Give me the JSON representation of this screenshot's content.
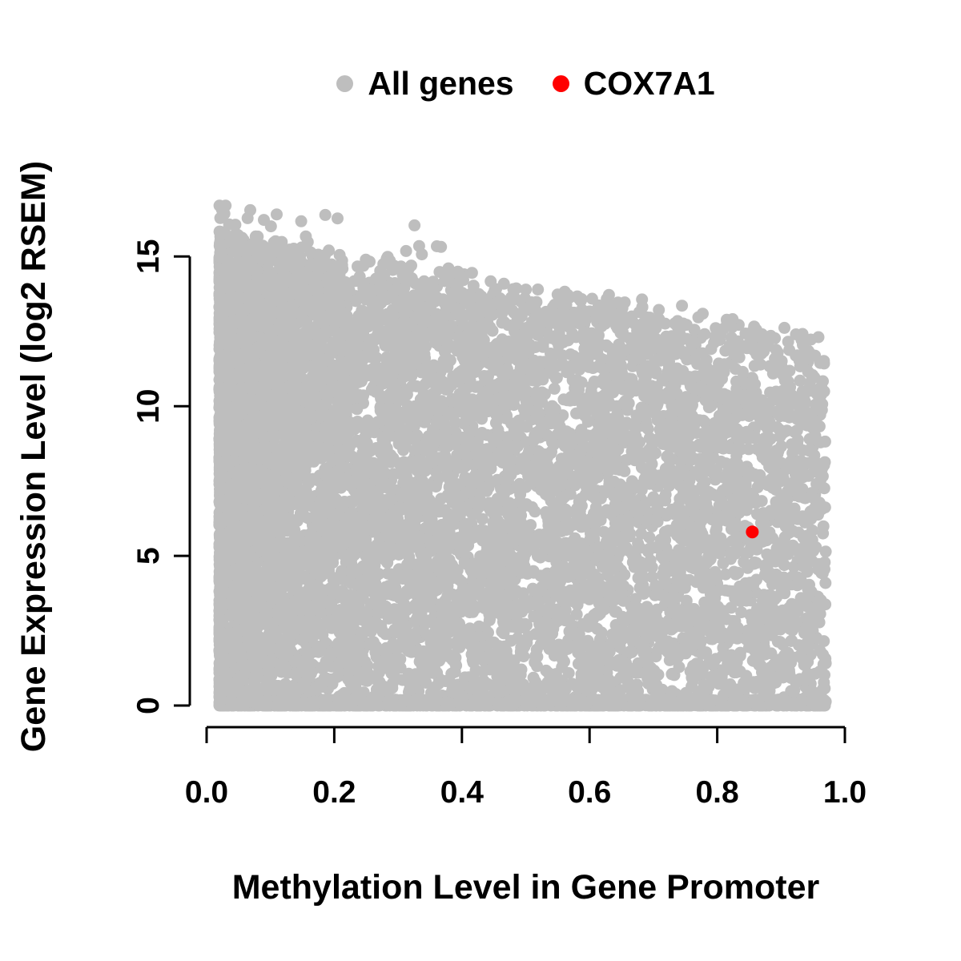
{
  "colors": {
    "background": "#ffffff",
    "axis": "#000000",
    "text": "#000000",
    "all_genes": "#bebebe",
    "highlight": "#ff0000"
  },
  "legend": {
    "position": "top-center",
    "items": [
      {
        "label": "All genes",
        "color": "#bebebe"
      },
      {
        "label": "COX7A1",
        "color": "#ff0000"
      }
    ]
  },
  "chart_data": {
    "type": "scatter",
    "title": "",
    "xlabel": "Methylation Level in Gene Promoter",
    "ylabel": "Gene Expression Level (log2 RSEM)",
    "xlim": [
      0,
      1
    ],
    "ylim": [
      0,
      16.8
    ],
    "grid": false,
    "legend_position": "top",
    "x_ticks": [
      {
        "v": 0.0,
        "label": "0.0"
      },
      {
        "v": 0.2,
        "label": "0.2"
      },
      {
        "v": 0.4,
        "label": "0.4"
      },
      {
        "v": 0.6,
        "label": "0.6"
      },
      {
        "v": 0.8,
        "label": "0.8"
      },
      {
        "v": 1.0,
        "label": "1.0"
      }
    ],
    "y_ticks": [
      {
        "v": 0,
        "label": "0"
      },
      {
        "v": 5,
        "label": "5"
      },
      {
        "v": 10,
        "label": "10"
      },
      {
        "v": 15,
        "label": "15"
      }
    ],
    "series": [
      {
        "name": "All genes",
        "color": "#bebebe",
        "marker": "filled-circle",
        "marker_radius": 7.5,
        "generated": true,
        "description": "Dense cloud of ~20k genes; methylation 0.02-0.97, expression 0-16.7; density highest at low methylation; upper envelope declines from ~15.6 at x=0 to ~12 at x=1; solid band of points at expression 0 across all x.",
        "n_points": 11000,
        "seed": 42,
        "x_range": [
          0.02,
          0.97
        ],
        "x_skew": 1.8,
        "baseline_fraction": 0.18,
        "baseline_x_skew": 1.15,
        "envelope": {
          "y_at_x0": 15.6,
          "y_at_x1": 12.0,
          "jitter": 1.0
        },
        "outlier_rate": 0.005,
        "outlier_x_max": 0.45,
        "y_max_outlier": 16.7
      },
      {
        "name": "COX7A1",
        "color": "#ff0000",
        "marker": "filled-circle",
        "marker_radius": 8,
        "points": [
          [
            0.855,
            5.8
          ]
        ]
      }
    ]
  }
}
